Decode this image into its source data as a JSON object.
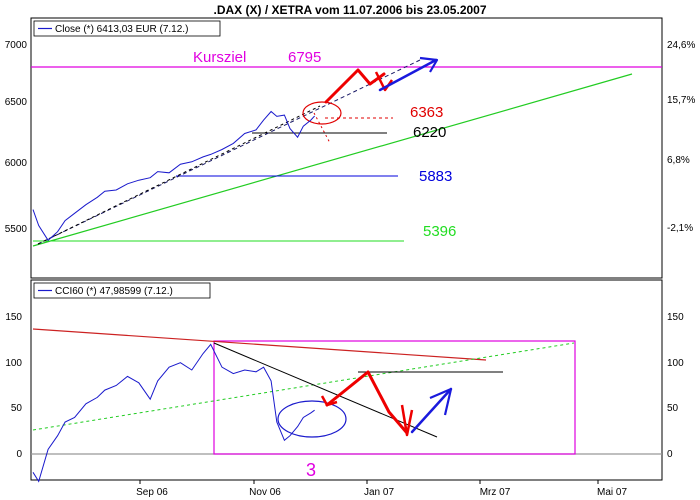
{
  "title": ".DAX (X) / XETRA vom 11.07.2006 bis 23.05.2007",
  "colors": {
    "price_line": "#1a1acc",
    "kursziel": "#e000e0",
    "level_6363": "#e00000",
    "level_6220": "#000000",
    "level_5883": "#0000dd",
    "level_5396": "#22dd22",
    "trend_green": "#22cc22",
    "cci_red_line": "#cc2222",
    "box": "#e000e0",
    "zero_line": "#999999"
  },
  "x_ticks": [
    "Sep 06",
    "Nov 06",
    "Jan 07",
    "Mrz 07",
    "Mai 07"
  ],
  "chart_data": [
    {
      "type": "line",
      "series": [
        {
          "name": "Close (*) 6413,03 EUR (7.12.)",
          "x": [
            "11.07.06",
            "14.07.06",
            "19.07.06",
            "24.07.06",
            "28.07.06",
            "02.08.06",
            "08.08.06",
            "14.08.06",
            "18.08.06",
            "24.08.06",
            "30.08.06",
            "05.09.06",
            "11.09.06",
            "15.09.06",
            "21.09.06",
            "27.09.06",
            "03.10.06",
            "09.10.06",
            "13.10.06",
            "19.10.06",
            "25.10.06",
            "31.10.06",
            "06.11.06",
            "10.11.06",
            "14.11.06",
            "17.11.06",
            "21.11.06",
            "24.11.06",
            "28.11.06",
            "01.12.06",
            "05.12.06",
            "07.12.06"
          ],
          "values": [
            5650,
            5520,
            5400,
            5470,
            5560,
            5620,
            5690,
            5750,
            5800,
            5810,
            5860,
            5890,
            5910,
            5960,
            5950,
            6020,
            6040,
            6080,
            6100,
            6140,
            6190,
            6270,
            6300,
            6380,
            6450,
            6410,
            6420,
            6310,
            6240,
            6330,
            6380,
            6413
          ]
        }
      ],
      "y_ticks_left": [
        5500,
        6000,
        6500,
        7000
      ],
      "y_ticks_right": [
        "-2,1%",
        "6,8%",
        "15,7%",
        "24,6%"
      ],
      "annotations": {
        "kursziel_label": "Kursziel",
        "kursziel_value": "6795",
        "levels": [
          "6363",
          "6220",
          "5883",
          "5396"
        ]
      }
    },
    {
      "type": "line",
      "series": [
        {
          "name": "CCI60 (*) 47,98599 (7.12.)",
          "x": [
            "11.07.06",
            "14.07.06",
            "19.07.06",
            "24.07.06",
            "28.07.06",
            "02.08.06",
            "08.08.06",
            "14.08.06",
            "18.08.06",
            "24.08.06",
            "30.08.06",
            "05.09.06",
            "11.09.06",
            "15.09.06",
            "21.09.06",
            "27.09.06",
            "03.10.06",
            "09.10.06",
            "13.10.06",
            "19.10.06",
            "25.10.06",
            "31.10.06",
            "06.11.06",
            "10.11.06",
            "14.11.06",
            "17.11.06",
            "21.11.06",
            "24.11.06",
            "28.11.06",
            "01.12.06",
            "05.12.06",
            "07.12.06"
          ],
          "values": [
            -20,
            -30,
            5,
            20,
            35,
            40,
            55,
            62,
            70,
            75,
            85,
            78,
            60,
            80,
            95,
            100,
            92,
            110,
            120,
            95,
            88,
            92,
            90,
            95,
            80,
            35,
            15,
            20,
            30,
            40,
            45,
            48
          ]
        }
      ],
      "y_ticks": [
        0,
        50,
        100,
        150
      ],
      "annotations": {
        "box_label": "3"
      }
    }
  ]
}
